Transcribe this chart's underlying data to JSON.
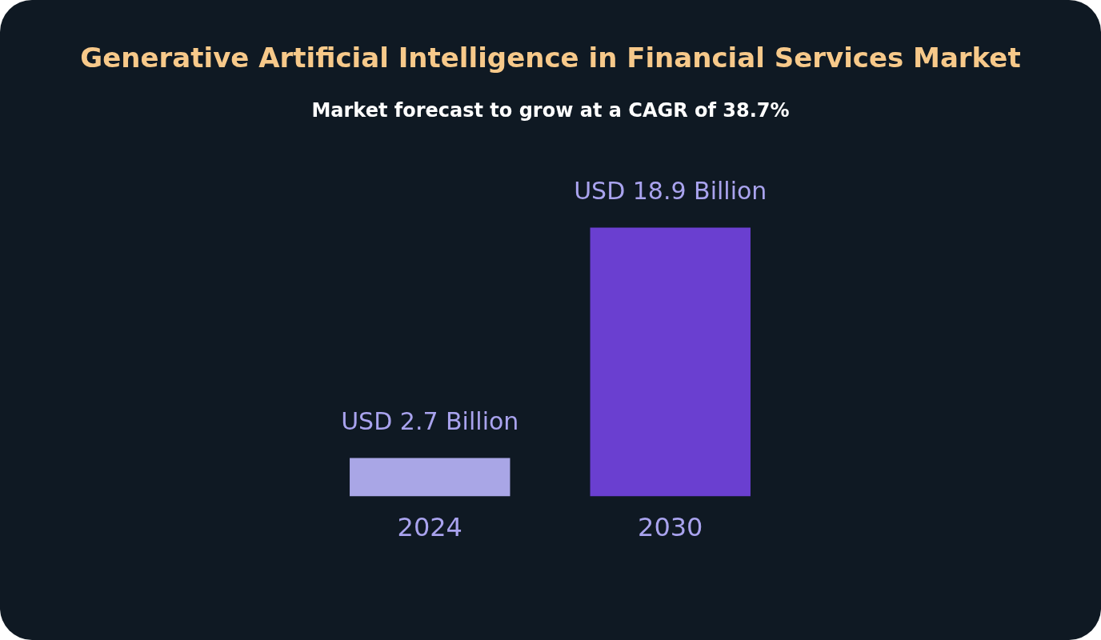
{
  "chart_data": {
    "type": "bar",
    "title": "Generative Artificial Intelligence in Financial Services Market",
    "subtitle": "Market forecast to grow at a CAGR of 38.7%",
    "categories": [
      "2024",
      "2030"
    ],
    "values": [
      2.7,
      18.9
    ],
    "colors": [
      "#a9a6e6",
      "#6a3fd0"
    ],
    "value_labels": [
      "USD 2.7 Billion",
      "USD 18.9 Billion"
    ],
    "legend": false
  }
}
